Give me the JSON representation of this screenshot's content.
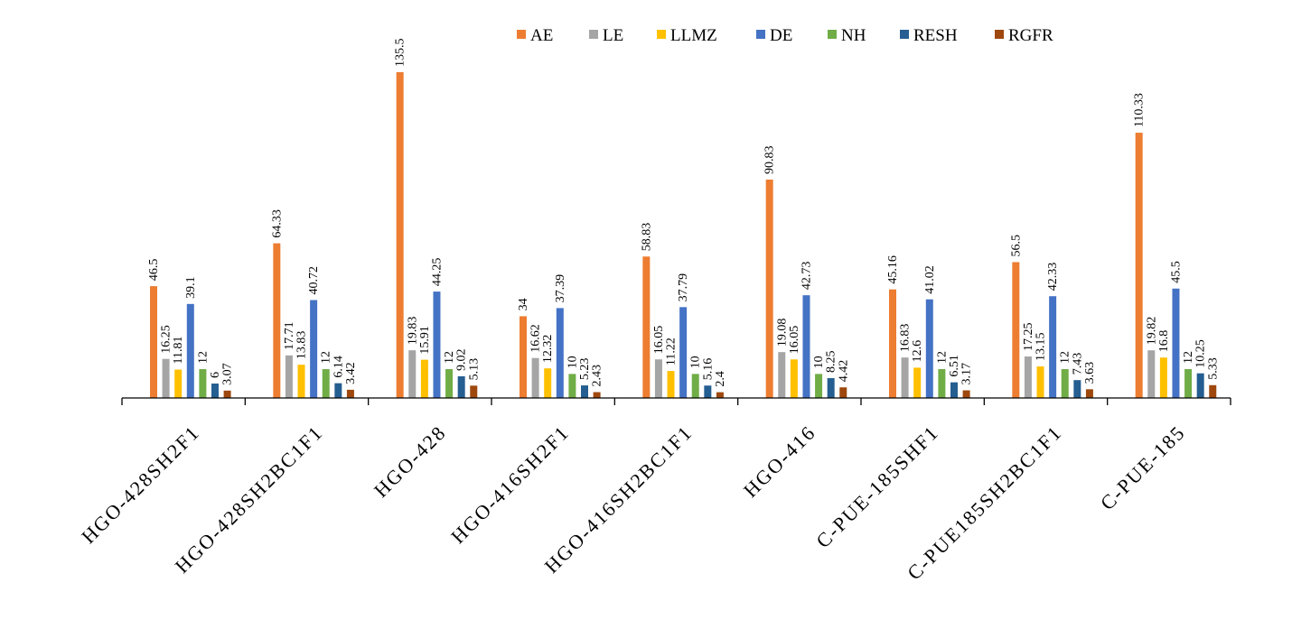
{
  "chart_data": {
    "type": "bar",
    "title": "",
    "xlabel": "",
    "ylabel": "",
    "ylim": [
      0,
      135.5
    ],
    "grid": false,
    "legend_position": "top",
    "categories": [
      "HGO-428SH2F1",
      "HGO-428SH2BC1F1",
      "HGO-428",
      "HGO-416SH2F1",
      "HGO-416SH2BC1F1",
      "HGO-416",
      "C-PUE-185SHF1",
      "C-PUE185SH2BC1F1",
      "C-PUE-185"
    ],
    "series": [
      {
        "name": "AE",
        "color": "#ED7D31",
        "values": [
          46.5,
          64.33,
          135.5,
          34,
          58.83,
          90.83,
          45.16,
          56.5,
          110.33
        ],
        "labels": [
          "46.5",
          "64.33",
          "135.5",
          "34",
          "58.83",
          "90.83",
          "45.16",
          "56.5",
          "110.33"
        ]
      },
      {
        "name": "LE",
        "color": "#A5A5A5",
        "values": [
          16.25,
          17.71,
          19.83,
          16.62,
          16.05,
          19.08,
          16.83,
          17.25,
          19.82
        ],
        "labels": [
          "16.25",
          "17.71",
          "19.83",
          "16.62",
          "16.05",
          "19.08",
          "16.83",
          "17.25",
          "19.82"
        ]
      },
      {
        "name": "LLMZ",
        "color": "#FFC000",
        "values": [
          11.81,
          13.83,
          15.91,
          12.32,
          11.22,
          16.05,
          12.6,
          13.15,
          16.8
        ],
        "labels": [
          "11.81",
          "13.83",
          "15.91",
          "12.32",
          "11.22",
          "16.05",
          "12.6",
          "13.15",
          "16.8"
        ]
      },
      {
        "name": "DE",
        "color": "#4472C4",
        "values": [
          39.1,
          40.72,
          44.25,
          37.39,
          37.79,
          42.73,
          41.02,
          42.33,
          45.5
        ],
        "labels": [
          "39.1",
          "40.72",
          "44.25",
          "37.39",
          "37.79",
          "42.73",
          "41.02",
          "42.33",
          "45.5"
        ]
      },
      {
        "name": "NH",
        "color": "#70AD47",
        "values": [
          12,
          12,
          12,
          10,
          10,
          10,
          12,
          12,
          12
        ],
        "labels": [
          "12",
          "12",
          "12",
          "10",
          "10",
          "10",
          "12",
          "12",
          "12"
        ]
      },
      {
        "name": "RESH",
        "color": "#255E91",
        "values": [
          6,
          6.14,
          9.02,
          5.23,
          5.16,
          8.25,
          6.51,
          7.43,
          10.25
        ],
        "labels": [
          "6",
          "6.14",
          "9.02",
          "5.23",
          "5.16",
          "8.25",
          "6.51",
          "7.43",
          "10.25"
        ]
      },
      {
        "name": "RGFR",
        "color": "#9E480E",
        "values": [
          3.07,
          3.42,
          5.13,
          2.43,
          2.4,
          4.42,
          3.17,
          3.63,
          5.33
        ],
        "labels": [
          "3.07",
          "3.42",
          "5.13",
          "2.43",
          "2.4",
          "4.42",
          "3.17",
          "3.63",
          "5.33"
        ]
      }
    ]
  }
}
